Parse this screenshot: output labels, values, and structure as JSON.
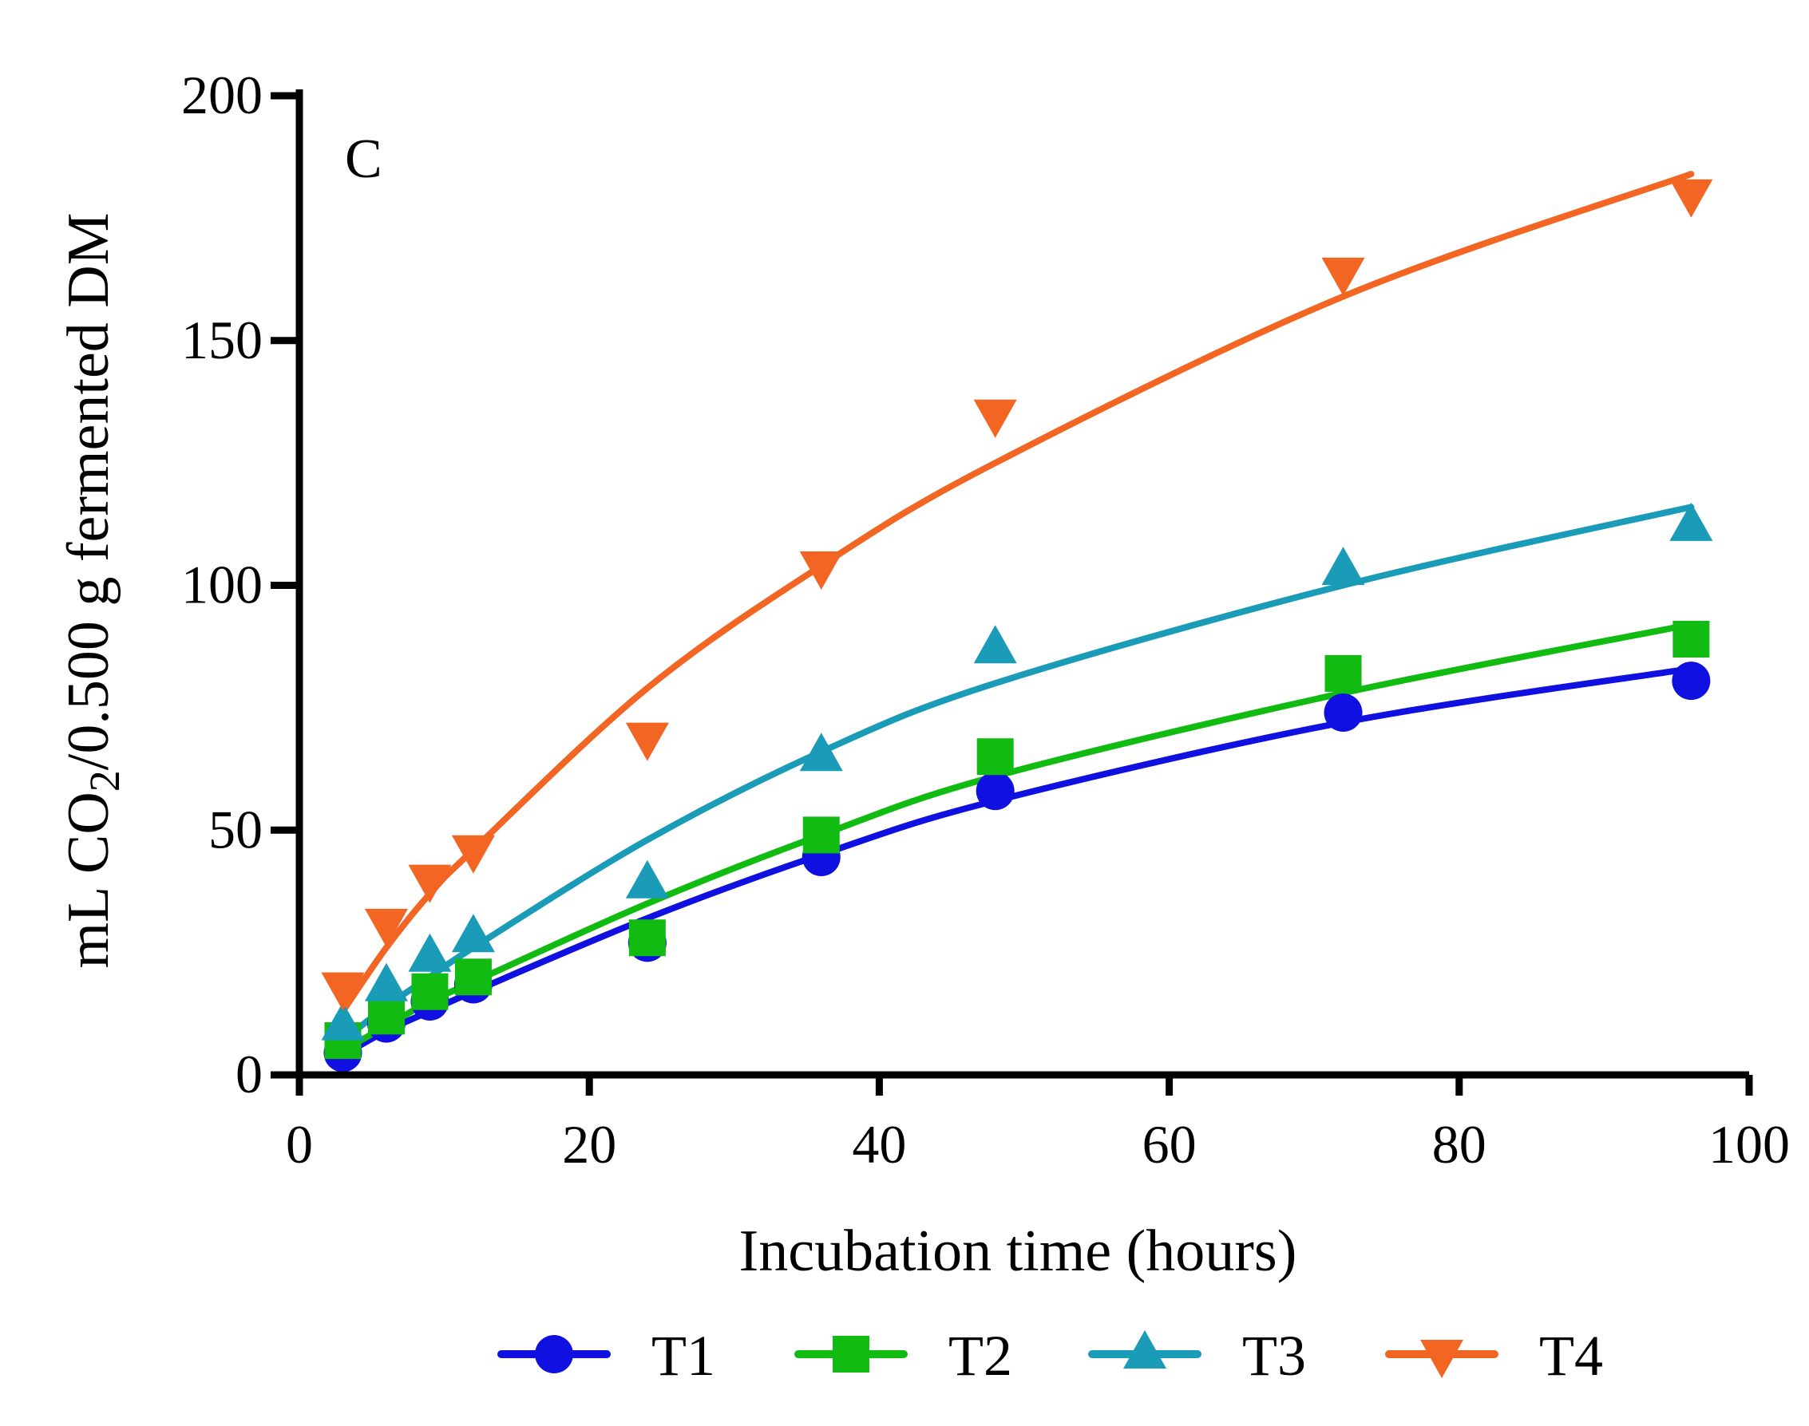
{
  "chart_data": {
    "type": "line",
    "panel_label": "C",
    "xlabel": "Incubation time (hours)",
    "ylabel": {
      "prefix": "mL CO",
      "subscript": "2",
      "suffix": "/0.500 g  fermented DM"
    },
    "xlim": [
      0,
      100
    ],
    "ylim": [
      0,
      200
    ],
    "xticks": [
      "0",
      "20",
      "40",
      "60",
      "80",
      "100"
    ],
    "yticks": [
      "0",
      "50",
      "100",
      "150",
      "200"
    ],
    "x": [
      3,
      6,
      9,
      12,
      24,
      36,
      48,
      72,
      96
    ],
    "series": [
      {
        "name": "T1",
        "marker": "circle",
        "color": "#1010e0",
        "values": [
          4.5,
          10.5,
          15,
          18.5,
          27,
          44.5,
          58,
          74,
          80.5
        ],
        "fit": [
          4,
          9,
          13,
          17,
          32,
          45,
          56,
          72,
          83
        ]
      },
      {
        "name": "T2",
        "marker": "square",
        "color": "#11bb11",
        "values": [
          7,
          12,
          17,
          20,
          28,
          49,
          65,
          82,
          89
        ],
        "fit": [
          5,
          10,
          15,
          19,
          35,
          49,
          61,
          78,
          92
        ]
      },
      {
        "name": "T3",
        "marker": "triangle-up",
        "color": "#1a9bb8",
        "values": [
          10,
          18,
          24,
          28,
          39,
          65,
          87,
          103,
          112
        ],
        "fit": [
          7,
          14,
          20,
          26,
          48,
          66,
          80,
          100,
          116
        ]
      },
      {
        "name": "T4",
        "marker": "triangle-down",
        "color": "#f26522",
        "values": [
          18,
          31,
          40,
          46,
          69,
          104,
          135,
          164,
          180
        ],
        "fit": [
          13,
          26,
          37,
          46,
          79,
          104,
          125,
          159,
          184
        ]
      }
    ],
    "legend": "bottom"
  }
}
